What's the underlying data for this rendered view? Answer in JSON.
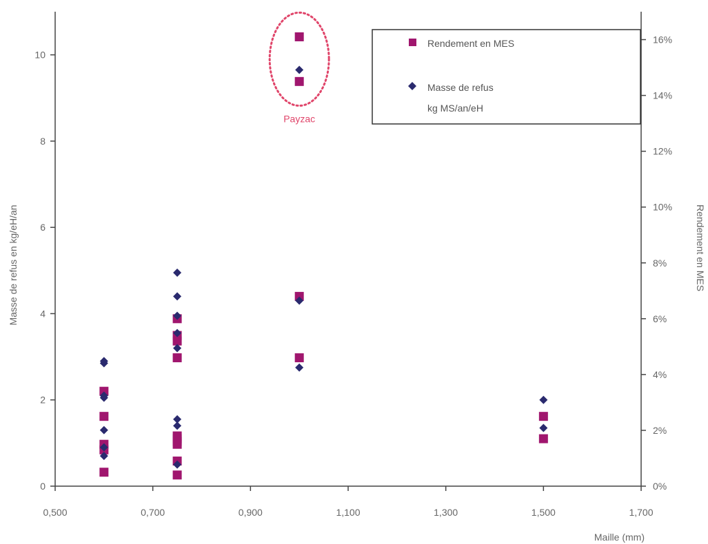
{
  "chart_data": {
    "type": "scatter",
    "xlabel": "Maille (mm)",
    "ylabel": "Masse de refus en kg/eH/an",
    "ylabel_right": "Rendement en MES",
    "xlim": [
      0.5,
      1.7
    ],
    "ylim": [
      0,
      11
    ],
    "ylim_right": [
      0,
      0.17
    ],
    "x_ticks": [
      0.5,
      0.7,
      0.9,
      1.1,
      1.3,
      1.5,
      1.7
    ],
    "x_tick_labels": [
      "0,500",
      "0,700",
      "0,900",
      "1,100",
      "1,300",
      "1,500",
      "1,700"
    ],
    "y_ticks": [
      0,
      2,
      4,
      6,
      8,
      10
    ],
    "y_tick_labels": [
      "0",
      "2",
      "4",
      "6",
      "8",
      "10"
    ],
    "y_right_ticks": [
      0,
      0.02,
      0.04,
      0.06,
      0.08,
      0.1,
      0.12,
      0.14,
      0.16
    ],
    "y_right_tick_labels": [
      "0%",
      "2%",
      "4%",
      "6%",
      "8%",
      "10%",
      "12%",
      "14%",
      "16%"
    ],
    "grid": false,
    "legend_position": "top-right",
    "series": [
      {
        "name": "Rendement en MES",
        "axis": "right",
        "marker": "square",
        "color": "#a0166e",
        "points": [
          {
            "x": 0.6,
            "y": 0.005
          },
          {
            "x": 0.6,
            "y": 0.013
          },
          {
            "x": 0.6,
            "y": 0.015
          },
          {
            "x": 0.6,
            "y": 0.025
          },
          {
            "x": 0.6,
            "y": 0.034
          },
          {
            "x": 0.75,
            "y": 0.004
          },
          {
            "x": 0.75,
            "y": 0.009
          },
          {
            "x": 0.75,
            "y": 0.015
          },
          {
            "x": 0.75,
            "y": 0.016
          },
          {
            "x": 0.75,
            "y": 0.017
          },
          {
            "x": 0.75,
            "y": 0.018
          },
          {
            "x": 0.75,
            "y": 0.046
          },
          {
            "x": 0.75,
            "y": 0.052
          },
          {
            "x": 0.75,
            "y": 0.054
          },
          {
            "x": 0.75,
            "y": 0.06
          },
          {
            "x": 1.0,
            "y": 0.046
          },
          {
            "x": 1.0,
            "y": 0.068
          },
          {
            "x": 1.0,
            "y": 0.145
          },
          {
            "x": 1.0,
            "y": 0.161
          },
          {
            "x": 1.5,
            "y": 0.017
          },
          {
            "x": 1.5,
            "y": 0.025
          }
        ]
      },
      {
        "name": "Masse de refus kg MS/an/eH",
        "name_lines": [
          "Masse de refus",
          "kg MS/an/eH"
        ],
        "axis": "left",
        "marker": "diamond",
        "color": "#2a2a6e",
        "points": [
          {
            "x": 0.6,
            "y": 0.7
          },
          {
            "x": 0.6,
            "y": 0.9
          },
          {
            "x": 0.6,
            "y": 1.3
          },
          {
            "x": 0.6,
            "y": 2.05
          },
          {
            "x": 0.6,
            "y": 2.1
          },
          {
            "x": 0.6,
            "y": 2.85
          },
          {
            "x": 0.6,
            "y": 2.9
          },
          {
            "x": 0.75,
            "y": 0.5
          },
          {
            "x": 0.75,
            "y": 1.4
          },
          {
            "x": 0.75,
            "y": 1.55
          },
          {
            "x": 0.75,
            "y": 3.2
          },
          {
            "x": 0.75,
            "y": 3.55
          },
          {
            "x": 0.75,
            "y": 3.95
          },
          {
            "x": 0.75,
            "y": 4.4
          },
          {
            "x": 0.75,
            "y": 4.95
          },
          {
            "x": 1.0,
            "y": 2.75
          },
          {
            "x": 1.0,
            "y": 4.3
          },
          {
            "x": 1.0,
            "y": 9.65
          },
          {
            "x": 1.5,
            "y": 1.35
          },
          {
            "x": 1.5,
            "y": 2.0
          }
        ]
      }
    ],
    "annotations": [
      {
        "text": "Payzac",
        "type": "ellipse-highlight",
        "color": "#e0456a",
        "target_x": 1.0,
        "target_y_range": [
          9.3,
          10.5
        ]
      }
    ]
  }
}
